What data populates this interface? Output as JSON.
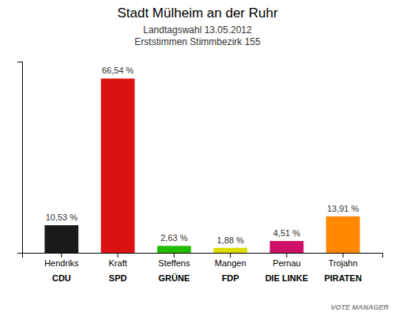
{
  "chart_data": {
    "type": "bar",
    "title": "Stadt Mülheim an der Ruhr",
    "subtitle": [
      "Landtagswahl 13.05.2012",
      "Erststimmen Stimmbezirk 155"
    ],
    "categories": [
      "Hendriks",
      "Kraft",
      "Steffens",
      "Mangen",
      "Pernau",
      "Trojahn"
    ],
    "parties": [
      "CDU",
      "SPD",
      "GRÜNE",
      "FDP",
      "DIE LINKE",
      "PIRATEN"
    ],
    "values": [
      10.53,
      66.54,
      2.63,
      1.88,
      4.51,
      13.91
    ],
    "value_labels": [
      "10,53 %",
      "66,54 %",
      "2,63 %",
      "1,88 %",
      "4,51 %",
      "13,91 %"
    ],
    "colors": [
      "#1a1a1a",
      "#dd1111",
      "#22bb00",
      "#dddd00",
      "#cc1166",
      "#ff8800"
    ],
    "ylim": [
      0,
      73
    ],
    "data_labels": true,
    "tick_labels": "x",
    "annotations": [
      "VOTE MANAGER"
    ]
  }
}
